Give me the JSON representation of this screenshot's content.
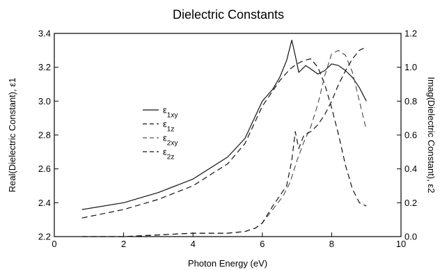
{
  "chart_data": {
    "type": "line",
    "title": "Dielectric Constants",
    "xlabel": "Photon Energy (eV)",
    "ylabel_left": "Real(Dielectric Constant), ε1",
    "ylabel_right": "Imag(Dielectric Constant), ε2",
    "xlim": [
      0,
      10
    ],
    "ylim_left": [
      2.2,
      3.4
    ],
    "ylim_right": [
      0.0,
      1.2
    ],
    "x_ticks": [
      "0",
      "2",
      "4",
      "6",
      "8",
      "10"
    ],
    "y_left_ticks": [
      "2.2",
      "2.4",
      "2.6",
      "2.8",
      "3.0",
      "3.2",
      "3.4"
    ],
    "y_right_ticks": [
      "0.0",
      "0.2",
      "0.4",
      "0.6",
      "0.8",
      "1.0",
      "1.2"
    ],
    "legend_position": "center-left",
    "grid": false,
    "series": [
      {
        "name": "ε1xy",
        "axis": "left",
        "style": "solid",
        "x": [
          0.8,
          2.0,
          3.0,
          4.0,
          5.0,
          5.5,
          6.0,
          6.3,
          6.5,
          6.7,
          6.85,
          6.95,
          7.05,
          7.15,
          7.25,
          7.4,
          7.6,
          7.8,
          8.0,
          8.2,
          8.4,
          8.6,
          8.8,
          9.0
        ],
        "y": [
          2.36,
          2.4,
          2.46,
          2.54,
          2.67,
          2.78,
          3.0,
          3.07,
          3.14,
          3.24,
          3.36,
          3.27,
          3.17,
          3.19,
          3.21,
          3.19,
          3.16,
          3.18,
          3.22,
          3.21,
          3.18,
          3.14,
          3.08,
          3.0
        ]
      },
      {
        "name": "ε1z",
        "axis": "left",
        "style": "dash",
        "x": [
          0.8,
          2.0,
          3.0,
          4.0,
          5.0,
          5.5,
          6.0,
          6.3,
          6.5,
          6.8,
          7.0,
          7.2,
          7.4,
          7.6,
          7.8,
          8.0,
          8.2,
          8.4,
          8.6,
          8.8,
          9.0
        ],
        "y": [
          2.31,
          2.36,
          2.42,
          2.5,
          2.63,
          2.75,
          2.97,
          3.06,
          3.12,
          3.19,
          3.22,
          3.24,
          3.25,
          3.2,
          3.1,
          2.96,
          2.8,
          2.62,
          2.48,
          2.4,
          2.38
        ]
      },
      {
        "name": "ε2xy",
        "axis": "right",
        "style": "dash",
        "x": [
          0.8,
          2.0,
          3.0,
          4.0,
          5.0,
          5.5,
          5.8,
          6.0,
          6.3,
          6.6,
          6.8,
          7.0,
          7.2,
          7.4,
          7.6,
          7.8,
          8.0,
          8.2,
          8.4,
          8.6,
          8.8,
          9.0
        ],
        "y": [
          0.0,
          0.0,
          0.01,
          0.02,
          0.02,
          0.03,
          0.05,
          0.08,
          0.16,
          0.24,
          0.32,
          0.45,
          0.56,
          0.65,
          0.78,
          0.95,
          1.08,
          1.1,
          1.07,
          0.97,
          0.8,
          0.63
        ]
      },
      {
        "name": "ε2z",
        "axis": "right",
        "style": "dash",
        "x": [
          0.8,
          2.0,
          3.0,
          4.0,
          5.0,
          5.5,
          5.8,
          6.0,
          6.3,
          6.5,
          6.7,
          6.85,
          6.95,
          7.05,
          7.2,
          7.4,
          7.6,
          7.8,
          8.0,
          8.2,
          8.4,
          8.6,
          8.8,
          9.0
        ],
        "y": [
          0.0,
          0.0,
          0.01,
          0.02,
          0.02,
          0.03,
          0.05,
          0.08,
          0.18,
          0.24,
          0.3,
          0.45,
          0.62,
          0.52,
          0.6,
          0.62,
          0.66,
          0.72,
          0.8,
          0.9,
          0.98,
          1.05,
          1.1,
          1.12
        ]
      }
    ],
    "legend": [
      {
        "base": "ε",
        "sub": "1xy"
      },
      {
        "base": "ε",
        "sub": "1z"
      },
      {
        "base": "ε",
        "sub": "2xy"
      },
      {
        "base": "ε",
        "sub": "2z"
      }
    ],
    "colors": {
      "ε1xy": "#111111",
      "ε1z": "#111111",
      "ε2xy": "#555555",
      "ε2z": "#111111"
    }
  }
}
